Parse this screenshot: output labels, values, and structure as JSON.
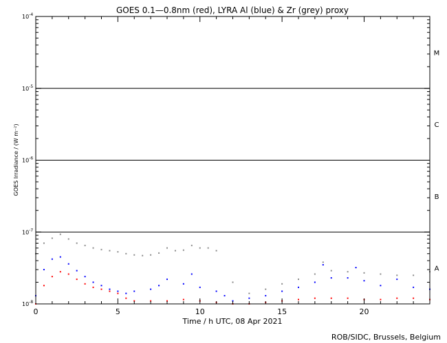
{
  "chart_data": {
    "type": "scatter",
    "title": "GOES 0.1—0.8nm (red), LYRA Al (blue) & Zr (grey) proxy",
    "xlabel": "Time / h UTC, 08 Apr 2021",
    "ylabel": "GOES Irradiance / (W m⁻²)",
    "xlim": [
      0,
      24
    ],
    "ylim": [
      1e-08,
      0.0001
    ],
    "yscale": "log",
    "x_ticks": [
      0,
      5,
      10,
      15,
      20
    ],
    "x_tick_labels": [
      "0",
      "5",
      "10",
      "15",
      "20"
    ],
    "y_ticks": [
      1e-08,
      1e-07,
      1e-06,
      1e-05,
      0.0001
    ],
    "y_tick_labels": [
      {
        "base": "10",
        "exp": "-8"
      },
      {
        "base": "10",
        "exp": "-7"
      },
      {
        "base": "10",
        "exp": "-6"
      },
      {
        "base": "10",
        "exp": "-5"
      },
      {
        "base": "10",
        "exp": "-4"
      }
    ],
    "flare_class_lines": [
      1e-07,
      1e-06,
      1e-05
    ],
    "flare_classes": [
      {
        "label": "A",
        "y": 3.16e-08
      },
      {
        "label": "B",
        "y": 3.16e-07
      },
      {
        "label": "C",
        "y": 3.16e-06
      },
      {
        "label": "M",
        "y": 3.16e-05
      }
    ],
    "credit": "ROB/SIDC, Brussels, Belgium",
    "series": [
      {
        "color": "#ff0000",
        "x": [
          0,
          0.5,
          1.0,
          1.5,
          2.0,
          2.5,
          3.0,
          3.5,
          4.0,
          4.5,
          5.0,
          5.5,
          6.0,
          7.0,
          8.0,
          9.0,
          10.0,
          11.0,
          12.0,
          13.0,
          14.0,
          15.0,
          16.0,
          17.0,
          18.0,
          19.0,
          20.0,
          21.0,
          22.0,
          23.0,
          24.0
        ],
        "y": [
          1e-08,
          1.8e-08,
          2.4e-08,
          2.8e-08,
          2.6e-08,
          2.2e-08,
          1.9e-08,
          1.7e-08,
          1.6e-08,
          1.5e-08,
          1.4e-08,
          1.2e-08,
          1.1e-08,
          1.1e-08,
          1.1e-08,
          1.15e-08,
          1.1e-08,
          1.05e-08,
          1e-08,
          1e-08,
          1.05e-08,
          1.1e-08,
          1.15e-08,
          1.2e-08,
          1.2e-08,
          1.2e-08,
          1.15e-08,
          1.15e-08,
          1.2e-08,
          1.2e-08,
          1.15e-08
        ]
      },
      {
        "color": "#0000ff",
        "x": [
          0,
          0.5,
          1.0,
          1.5,
          2.0,
          2.5,
          3.0,
          3.5,
          4.0,
          4.5,
          5.0,
          5.5,
          6.0,
          7.0,
          7.5,
          8.0,
          9.0,
          9.5,
          10.0,
          11.0,
          11.5,
          12.0,
          13.0,
          14.0,
          15.0,
          16.0,
          17.0,
          17.5,
          18.0,
          19.0,
          19.5,
          20.0,
          21.0,
          22.0,
          23.0,
          24.0
        ],
        "y": [
          1.3e-08,
          3e-08,
          4.2e-08,
          4.5e-08,
          3.6e-08,
          2.9e-08,
          2.4e-08,
          2e-08,
          1.8e-08,
          1.6e-08,
          1.5e-08,
          1.4e-08,
          1.5e-08,
          1.6e-08,
          1.8e-08,
          2.2e-08,
          1.9e-08,
          2.6e-08,
          1.7e-08,
          1.5e-08,
          1.3e-08,
          1.1e-08,
          1.2e-08,
          1.3e-08,
          1.5e-08,
          1.7e-08,
          2e-08,
          3.5e-08,
          2.3e-08,
          2.3e-08,
          3.2e-08,
          2.1e-08,
          1.8e-08,
          2.2e-08,
          1.7e-08,
          1.6e-08
        ]
      },
      {
        "color": "#888888",
        "x": [
          0,
          0.5,
          1.0,
          1.5,
          2.0,
          2.5,
          3.0,
          3.5,
          4.0,
          4.5,
          5.0,
          5.5,
          6.0,
          6.5,
          7.0,
          7.5,
          8.0,
          8.5,
          9.0,
          9.5,
          10.0,
          10.5,
          11.0,
          12.0,
          13.0,
          14.0,
          15.0,
          16.0,
          17.0,
          17.5,
          18.0,
          19.0,
          20.0,
          21.0,
          22.0,
          23.0,
          24.0
        ],
        "y": [
          5e-08,
          7e-08,
          8.2e-08,
          9.3e-08,
          8e-08,
          7e-08,
          6.5e-08,
          6e-08,
          5.7e-08,
          5.5e-08,
          5.3e-08,
          5e-08,
          4.8e-08,
          4.7e-08,
          4.8e-08,
          5.1e-08,
          6e-08,
          5.5e-08,
          5.6e-08,
          6.5e-08,
          6e-08,
          6e-08,
          5.5e-08,
          2e-08,
          1.4e-08,
          1.6e-08,
          1.9e-08,
          2.2e-08,
          2.6e-08,
          3.8e-08,
          2.9e-08,
          2.8e-08,
          2.7e-08,
          2.6e-08,
          2.5e-08,
          2.5e-08,
          2.8e-08
        ]
      }
    ]
  }
}
